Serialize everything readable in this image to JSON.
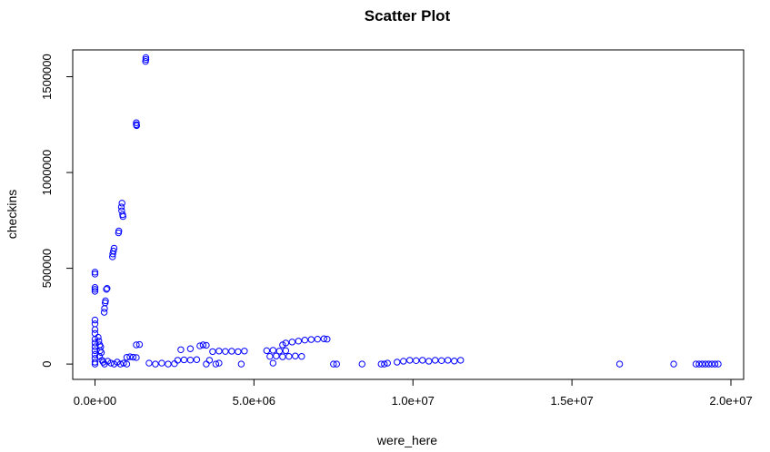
{
  "chart_data": {
    "type": "scatter",
    "title": "Scatter Plot",
    "xlabel": "were_here",
    "ylabel": "checkins",
    "xlim": [
      -700000,
      20400000
    ],
    "ylim": [
      -80000,
      1640000
    ],
    "x_ticks": [
      0,
      5000000,
      10000000,
      15000000,
      20000000
    ],
    "x_tick_labels": [
      "0.0e+00",
      "5.0e+06",
      "1.0e+07",
      "1.5e+07",
      "2.0e+07"
    ],
    "y_ticks": [
      0,
      500000,
      1000000,
      1500000
    ],
    "y_tick_labels": [
      "0",
      "500000",
      "1000000",
      "1500000"
    ],
    "grid": false,
    "marker": "open-circle",
    "point_color": "#0000ff",
    "points": [
      [
        1600000,
        1600000
      ],
      [
        1600000,
        1590000
      ],
      [
        1590000,
        1580000
      ],
      [
        1300000,
        1260000
      ],
      [
        1300000,
        1250000
      ],
      [
        1310000,
        1245000
      ],
      [
        850000,
        840000
      ],
      [
        830000,
        820000
      ],
      [
        840000,
        800000
      ],
      [
        870000,
        780000
      ],
      [
        880000,
        770000
      ],
      [
        750000,
        695000
      ],
      [
        740000,
        685000
      ],
      [
        600000,
        605000
      ],
      [
        580000,
        590000
      ],
      [
        560000,
        575000
      ],
      [
        550000,
        560000
      ],
      [
        380000,
        395000
      ],
      [
        360000,
        390000
      ],
      [
        330000,
        330000
      ],
      [
        320000,
        320000
      ],
      [
        300000,
        290000
      ],
      [
        290000,
        270000
      ],
      [
        0,
        480000
      ],
      [
        0,
        470000
      ],
      [
        0,
        400000
      ],
      [
        0,
        390000
      ],
      [
        0,
        380000
      ],
      [
        0,
        230000
      ],
      [
        0,
        210000
      ],
      [
        0,
        180000
      ],
      [
        0,
        160000
      ],
      [
        0,
        130000
      ],
      [
        0,
        110000
      ],
      [
        0,
        90000
      ],
      [
        0,
        70000
      ],
      [
        0,
        50000
      ],
      [
        0,
        30000
      ],
      [
        0,
        10000
      ],
      [
        0,
        0
      ],
      [
        100000,
        140000
      ],
      [
        120000,
        120000
      ],
      [
        150000,
        100000
      ],
      [
        180000,
        90000
      ],
      [
        160000,
        70000
      ],
      [
        200000,
        60000
      ],
      [
        140000,
        40000
      ],
      [
        220000,
        20000
      ],
      [
        260000,
        10000
      ],
      [
        300000,
        0
      ],
      [
        400000,
        15000
      ],
      [
        500000,
        5000
      ],
      [
        600000,
        0
      ],
      [
        700000,
        10000
      ],
      [
        800000,
        0
      ],
      [
        900000,
        5000
      ],
      [
        1000000,
        0
      ],
      [
        1000000,
        35000
      ],
      [
        1100000,
        38000
      ],
      [
        1200000,
        36000
      ],
      [
        1300000,
        34000
      ],
      [
        1300000,
        100000
      ],
      [
        1400000,
        102000
      ],
      [
        1700000,
        5000
      ],
      [
        1900000,
        0
      ],
      [
        2100000,
        5000
      ],
      [
        2300000,
        0
      ],
      [
        2500000,
        2000
      ],
      [
        2600000,
        20000
      ],
      [
        2800000,
        22000
      ],
      [
        3000000,
        21000
      ],
      [
        3200000,
        23000
      ],
      [
        2700000,
        75000
      ],
      [
        3000000,
        80000
      ],
      [
        3300000,
        95000
      ],
      [
        3400000,
        100000
      ],
      [
        3500000,
        98000
      ],
      [
        3600000,
        20000
      ],
      [
        3500000,
        0
      ],
      [
        3800000,
        0
      ],
      [
        3900000,
        5000
      ],
      [
        3700000,
        65000
      ],
      [
        3900000,
        68000
      ],
      [
        4100000,
        66000
      ],
      [
        4300000,
        67000
      ],
      [
        4500000,
        65000
      ],
      [
        4700000,
        68000
      ],
      [
        4600000,
        0
      ],
      [
        5400000,
        70000
      ],
      [
        5600000,
        72000
      ],
      [
        5800000,
        68000
      ],
      [
        6000000,
        70000
      ],
      [
        5500000,
        40000
      ],
      [
        5700000,
        42000
      ],
      [
        5900000,
        38000
      ],
      [
        6100000,
        40000
      ],
      [
        6300000,
        42000
      ],
      [
        6500000,
        40000
      ],
      [
        5600000,
        5000
      ],
      [
        5900000,
        100000
      ],
      [
        6000000,
        110000
      ],
      [
        6200000,
        115000
      ],
      [
        6400000,
        120000
      ],
      [
        6600000,
        125000
      ],
      [
        6800000,
        128000
      ],
      [
        7000000,
        130000
      ],
      [
        7200000,
        132000
      ],
      [
        7300000,
        130000
      ],
      [
        7500000,
        0
      ],
      [
        7600000,
        0
      ],
      [
        8400000,
        0
      ],
      [
        9000000,
        0
      ],
      [
        9100000,
        0
      ],
      [
        9200000,
        5000
      ],
      [
        9500000,
        10000
      ],
      [
        9700000,
        15000
      ],
      [
        9900000,
        20000
      ],
      [
        10100000,
        18000
      ],
      [
        10300000,
        20000
      ],
      [
        10500000,
        15000
      ],
      [
        10700000,
        20000
      ],
      [
        10900000,
        18000
      ],
      [
        11100000,
        20000
      ],
      [
        11300000,
        16000
      ],
      [
        11500000,
        20000
      ],
      [
        16500000,
        0
      ],
      [
        18200000,
        0
      ],
      [
        18900000,
        0
      ],
      [
        19000000,
        0
      ],
      [
        19100000,
        0
      ],
      [
        19200000,
        0
      ],
      [
        19300000,
        0
      ],
      [
        19400000,
        0
      ],
      [
        19500000,
        0
      ],
      [
        19600000,
        0
      ]
    ]
  }
}
